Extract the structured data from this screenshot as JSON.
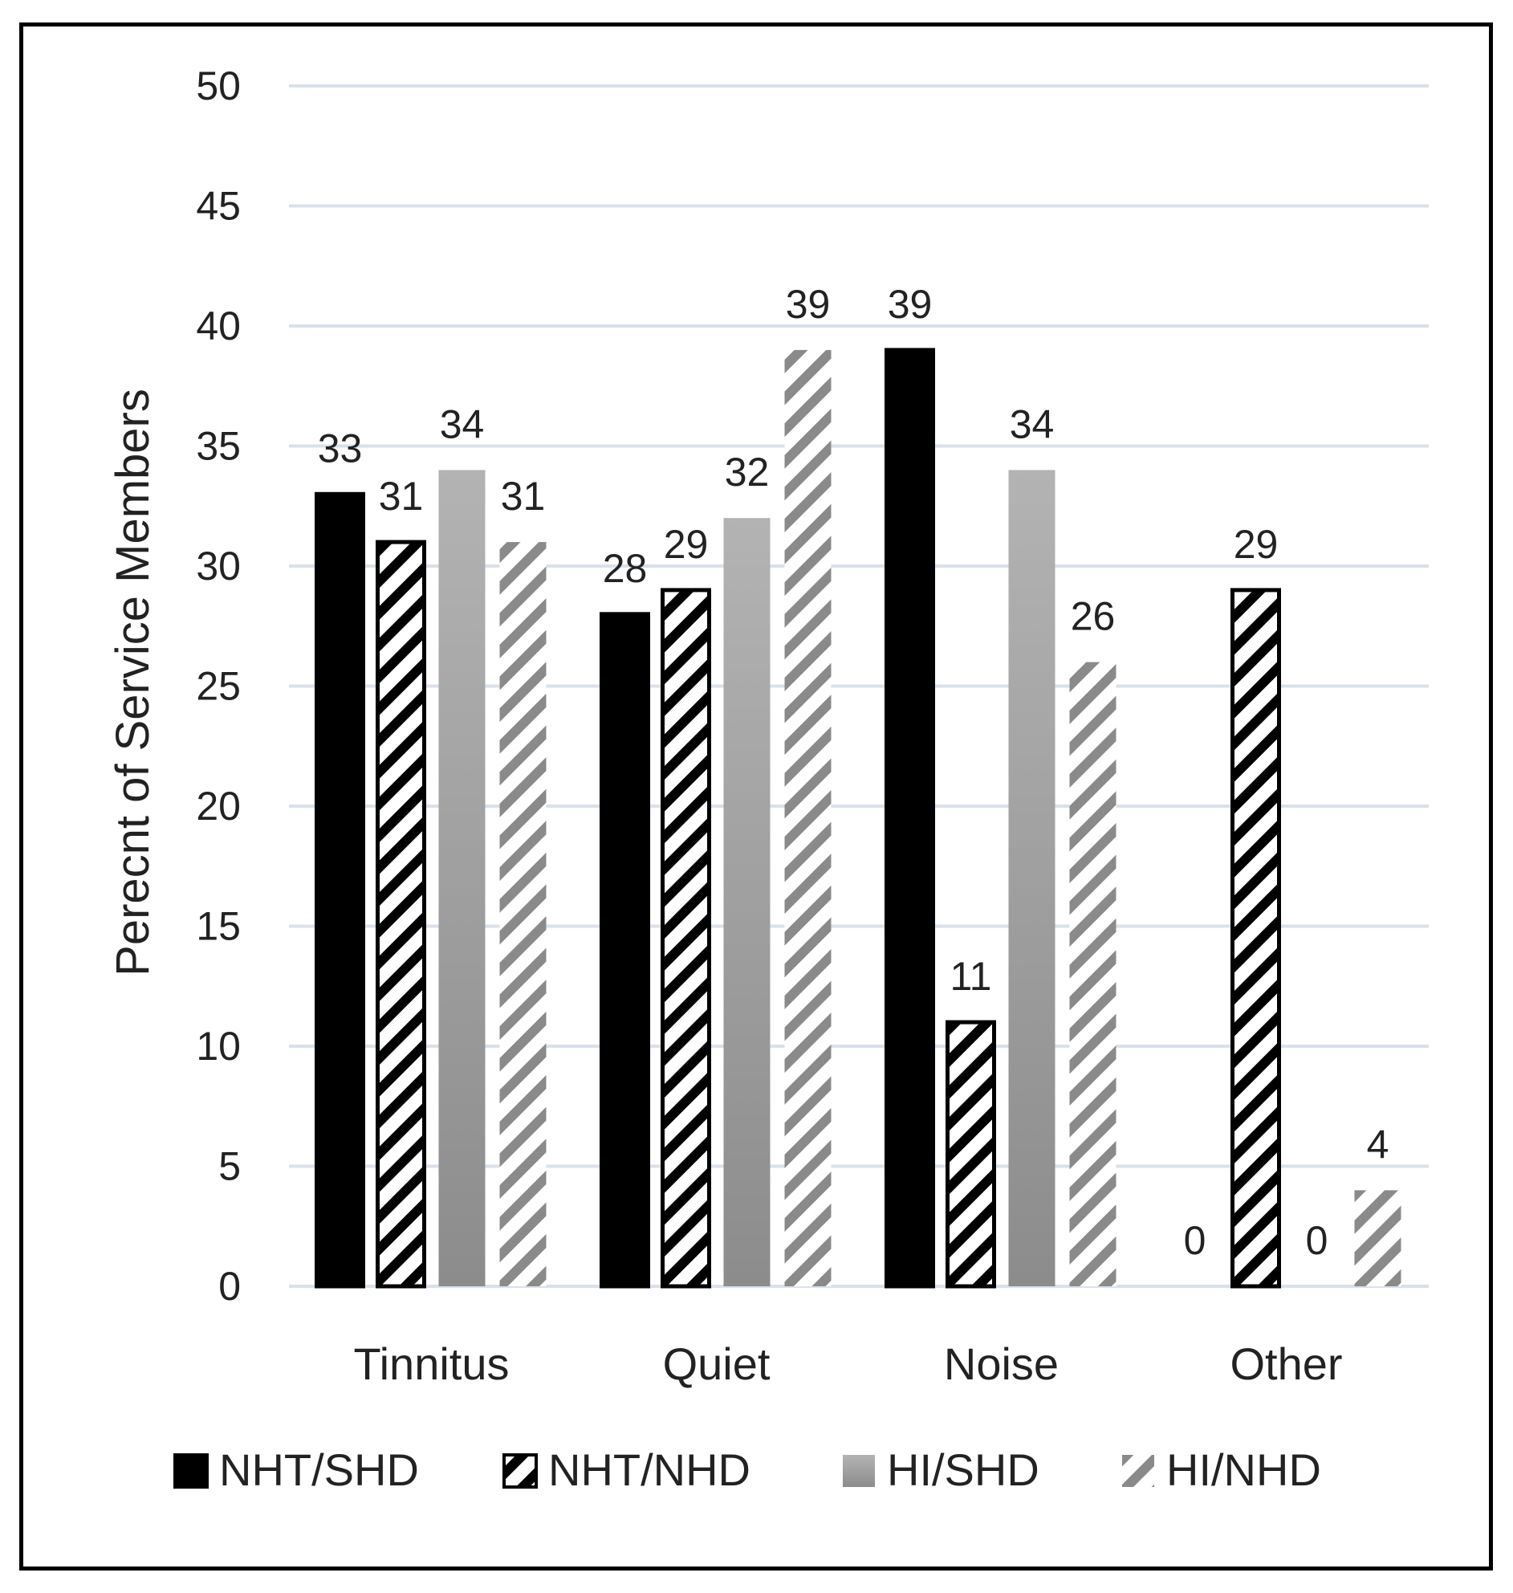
{
  "chart_data": {
    "type": "bar",
    "title": "",
    "xlabel": "",
    "ylabel": "Perecnt of Service Members",
    "ylim": [
      0,
      50
    ],
    "yticks": [
      0,
      5,
      10,
      15,
      20,
      25,
      30,
      35,
      40,
      45,
      50
    ],
    "grid": true,
    "legend_position": "bottom",
    "categories": [
      "Tinnitus",
      "Quiet",
      "Noise",
      "Other"
    ],
    "series": [
      {
        "name": "NHT/SHD",
        "values": [
          33,
          28,
          39,
          0
        ],
        "labels": [
          "33",
          "28",
          "39",
          "0"
        ],
        "pattern": "solid-black"
      },
      {
        "name": "NHT/NHD",
        "values": [
          31,
          29,
          11,
          29
        ],
        "labels": [
          "31",
          "29",
          "11",
          "29"
        ],
        "pattern": "black-diagonal-stripes"
      },
      {
        "name": "HI/SHD",
        "values": [
          34,
          32,
          34,
          0
        ],
        "labels": [
          "34",
          "32",
          "34",
          "0"
        ],
        "pattern": "gray-gradient"
      },
      {
        "name": "HI/NHD",
        "values": [
          31,
          39,
          26,
          4
        ],
        "labels": [
          "31",
          "39",
          "26",
          "4"
        ],
        "pattern": "gray-diagonal-stripes"
      }
    ]
  },
  "colors": {
    "nht_shd": "#000000",
    "nht_nhd_stripe": "#000000",
    "hi_shd_top": "#b3b3b3",
    "hi_shd_bottom": "#8c8c8c",
    "hi_nhd_stripe": "#8a8a8a",
    "gridline": "#d9e1ea",
    "text": "#222222"
  }
}
